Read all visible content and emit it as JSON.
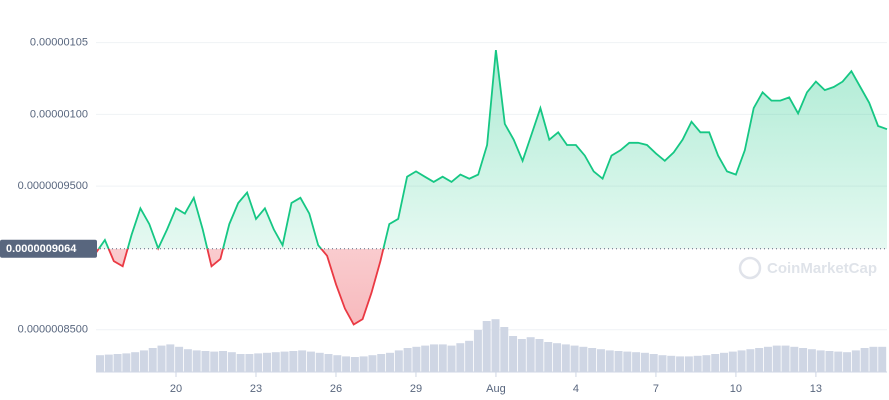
{
  "chart_data": {
    "type": "line",
    "series": [
      {
        "name": "Price",
        "color": "#16c784",
        "below_color": "#ea3943",
        "values": [
          9.037e-07,
          9.125e-07,
          8.978e-07,
          8.942e-07,
          9.162e-07,
          9.346e-07,
          9.236e-07,
          9.067e-07,
          9.199e-07,
          9.346e-07,
          9.309e-07,
          9.419e-07,
          9.199e-07,
          8.942e-07,
          8.993e-07,
          9.236e-07,
          9.383e-07,
          9.456e-07,
          9.272e-07,
          9.346e-07,
          9.199e-07,
          9.089e-07,
          9.383e-07,
          9.419e-07,
          9.309e-07,
          9.089e-07,
          9.015e-07,
          8.817e-07,
          8.648e-07,
          8.537e-07,
          8.574e-07,
          8.758e-07,
          8.978e-07,
          9.236e-07,
          9.272e-07,
          9.566e-07,
          9.603e-07,
          9.566e-07,
          9.53e-07,
          9.566e-07,
          9.53e-07,
          9.581e-07,
          9.552e-07,
          9.581e-07,
          9.787e-07,
          1.0448e-06,
          9.934e-07,
          9.824e-07,
          9.677e-07,
          9.86e-07,
          1.0044e-06,
          9.824e-07,
          9.875e-07,
          9.787e-07,
          9.787e-07,
          9.713e-07,
          9.603e-07,
          9.552e-07,
          9.713e-07,
          9.75e-07,
          9.802e-07,
          9.802e-07,
          9.787e-07,
          9.728e-07,
          9.677e-07,
          9.735e-07,
          9.824e-07,
          9.949e-07,
          9.875e-07,
          9.875e-07,
          9.713e-07,
          9.603e-07,
          9.581e-07,
          9.75e-07,
          1.0044e-06,
          1.0154e-06,
          1.0096e-06,
          1.0096e-06,
          1.0118e-06,
          1.0007e-06,
          1.0154e-06,
          1.0228e-06,
          1.0169e-06,
          1.0191e-06,
          1.0228e-06,
          1.0301e-06,
          1.0191e-06,
          1.0081e-06,
          9.919e-07,
          9.897e-07
        ]
      }
    ],
    "volume": {
      "color": "#cfd6e4",
      "ylim": [
        0,
        100
      ],
      "values": [
        28,
        29,
        30,
        31,
        33,
        36,
        40,
        44,
        46,
        42,
        38,
        36,
        35,
        34,
        35,
        33,
        30,
        30,
        31,
        32,
        33,
        34,
        35,
        36,
        34,
        32,
        30,
        28,
        26,
        25,
        26,
        28,
        30,
        32,
        36,
        40,
        42,
        44,
        46,
        46,
        44,
        48,
        52,
        70,
        85,
        88,
        75,
        60,
        55,
        58,
        55,
        50,
        48,
        46,
        44,
        42,
        40,
        38,
        36,
        35,
        34,
        33,
        32,
        30,
        28,
        27,
        26,
        26,
        27,
        28,
        30,
        32,
        34,
        36,
        38,
        40,
        42,
        44,
        44,
        42,
        40,
        38,
        36,
        35,
        34,
        33,
        36,
        40,
        42,
        42
      ]
    },
    "baseline": {
      "value": 9.064e-07,
      "label": "0.0000009064"
    },
    "xlim": [
      0,
      89
    ],
    "xticks": [
      {
        "value": 9,
        "label": "20"
      },
      {
        "value": 18,
        "label": "23"
      },
      {
        "value": 27,
        "label": "26"
      },
      {
        "value": 36,
        "label": "29"
      },
      {
        "value": 45,
        "label": "Aug"
      },
      {
        "value": 54,
        "label": "4"
      },
      {
        "value": 63,
        "label": "7"
      },
      {
        "value": 72,
        "label": "10"
      },
      {
        "value": 81,
        "label": "13"
      }
    ],
    "ylim": [
      8.206e-07,
      1.0713e-06
    ],
    "yticks": [
      {
        "value": 1.05e-06,
        "label": "0.00000105"
      },
      {
        "value": 1e-06,
        "label": "0.00000100"
      },
      {
        "value": 9.5e-07,
        "label": "0.0000009500"
      },
      {
        "value": 8.5e-07,
        "label": "0.0000008500"
      }
    ],
    "grid": true,
    "watermark": "CoinMarketCap"
  }
}
